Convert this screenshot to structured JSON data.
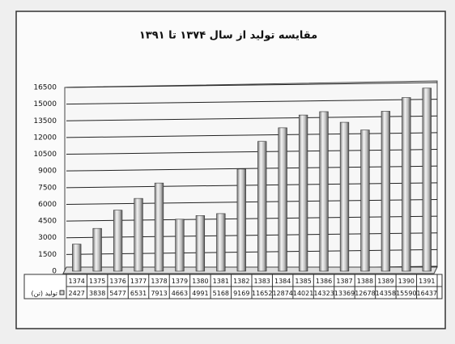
{
  "chart_data": {
    "type": "bar",
    "title": "مقایسه تولید از سال ۱۳۷۴ تا ۱۳۹۱",
    "categories": [
      "1374",
      "1375",
      "1376",
      "1377",
      "1378",
      "1379",
      "1380",
      "1381",
      "1382",
      "1383",
      "1384",
      "1385",
      "1386",
      "1387",
      "1388",
      "1389",
      "1390",
      "1391"
    ],
    "series": [
      {
        "name": "تولید (تن)",
        "color": "#d9d9d9",
        "values": [
          2427,
          3838,
          5477,
          6531,
          7913,
          4663,
          4991,
          5168,
          9169,
          11652,
          12874,
          14021,
          14323,
          13369,
          12678,
          14358,
          15590,
          16437
        ]
      }
    ],
    "ylim": [
      0,
      16500
    ],
    "yticks": [
      0,
      1500,
      3000,
      4500,
      6000,
      7500,
      9000,
      10500,
      12000,
      13500,
      15000,
      16500
    ],
    "grid": true
  }
}
